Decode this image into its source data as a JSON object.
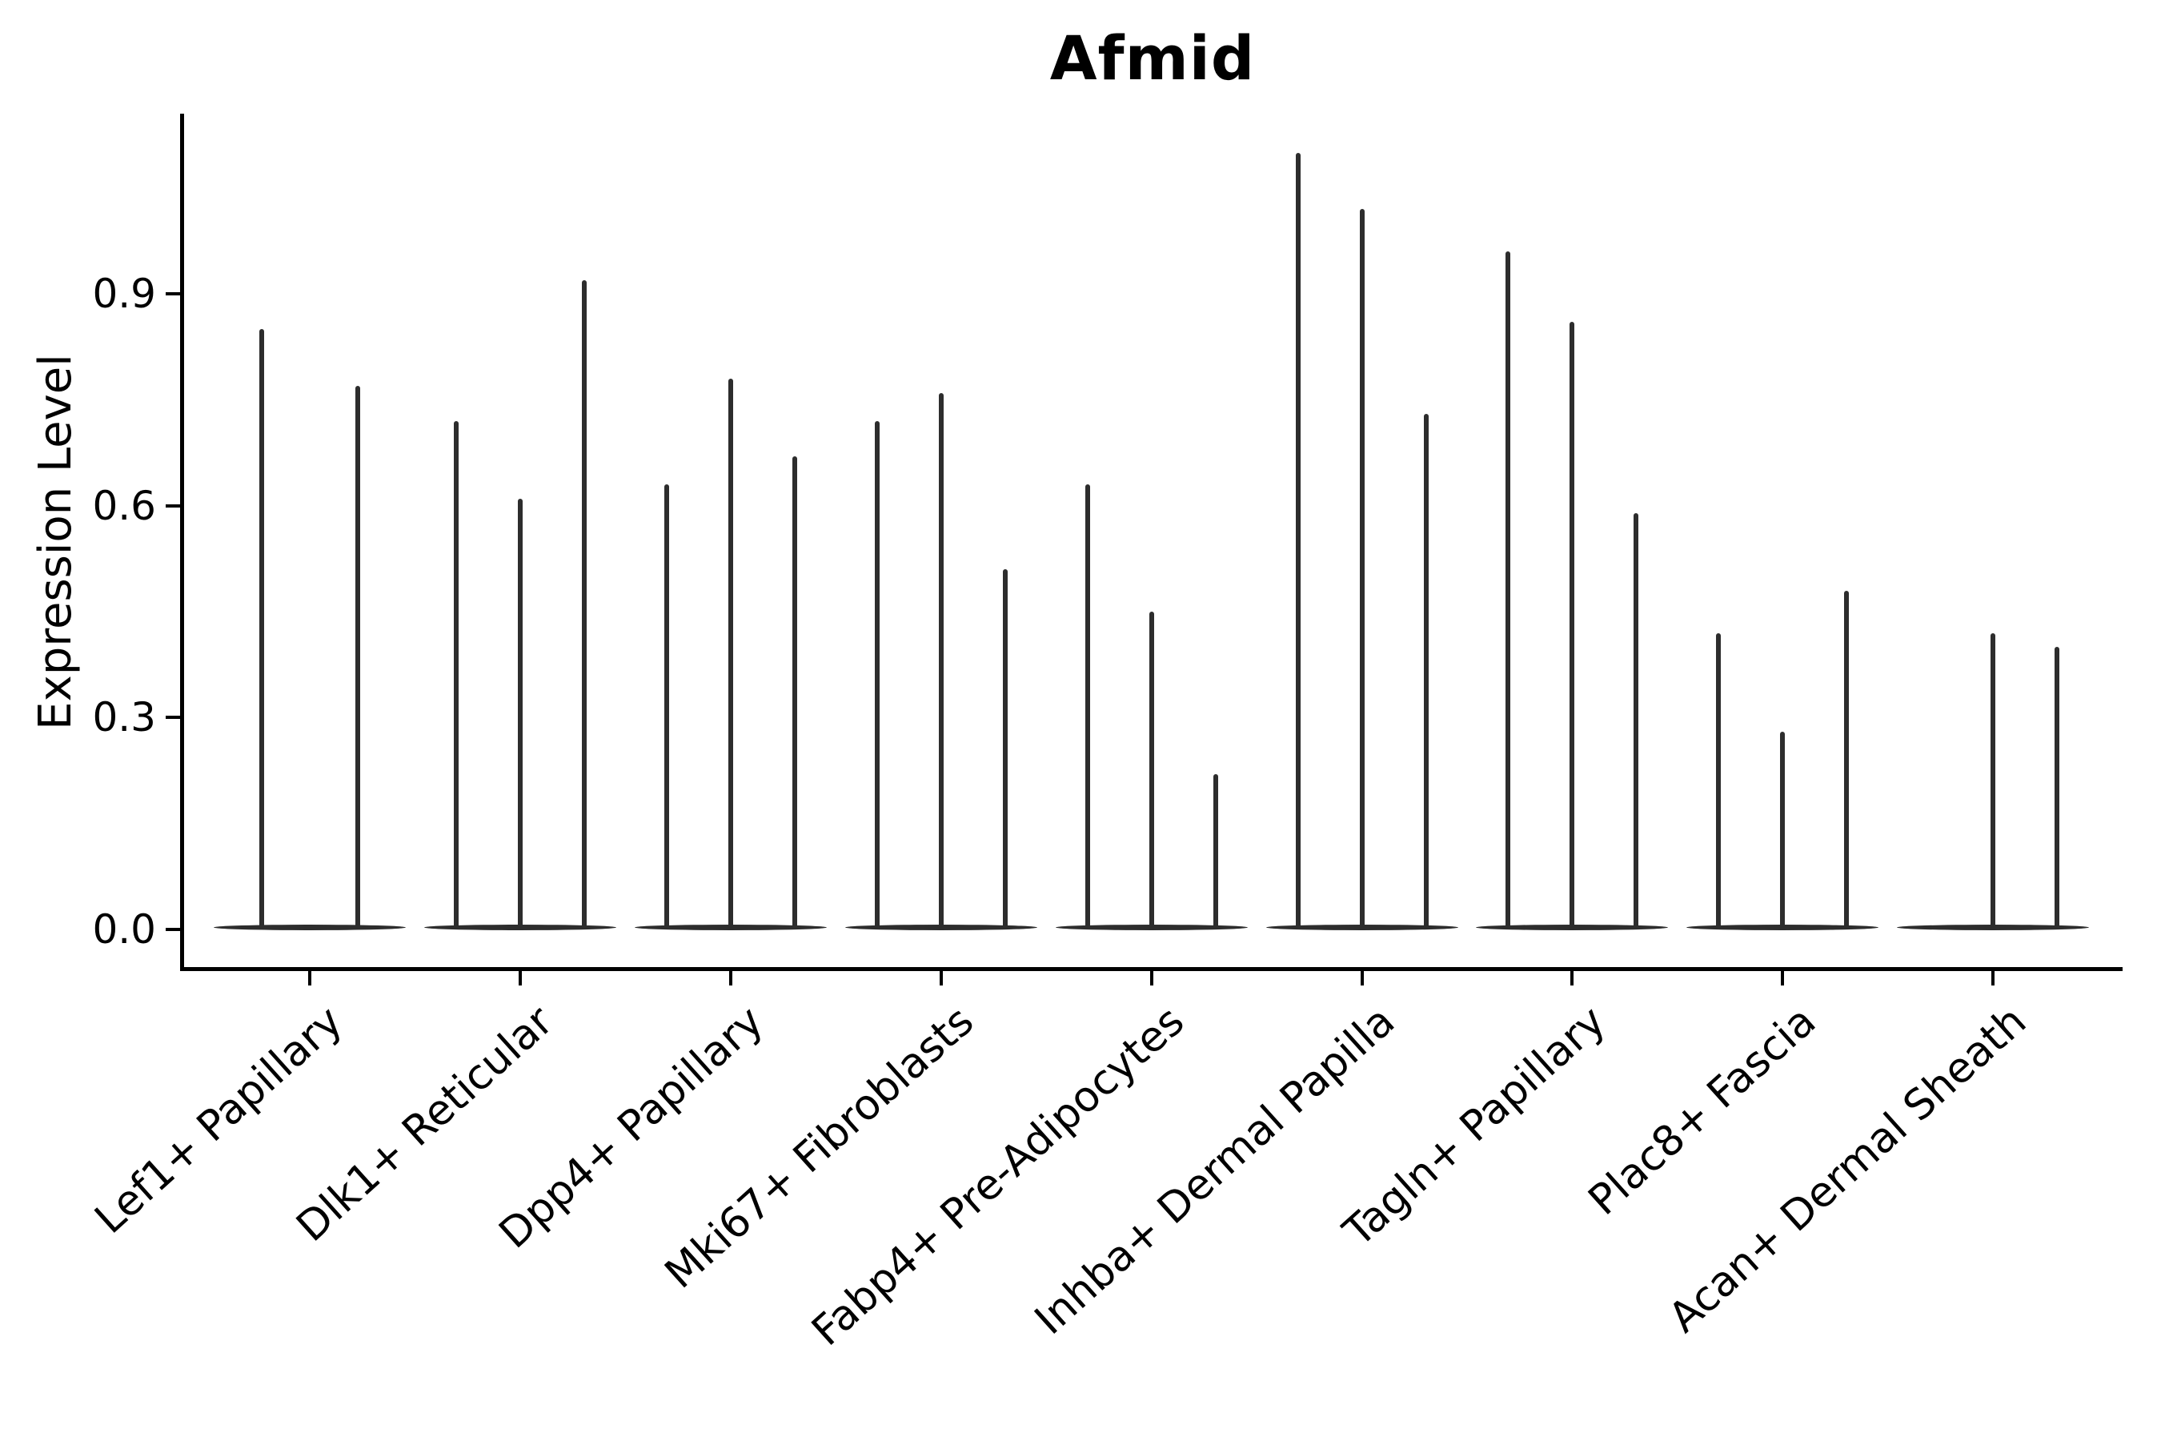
{
  "figure": {
    "background": "#ffffff",
    "ink_color": "#2d2d2d",
    "axis_color": "#000000"
  },
  "chart_data": {
    "type": "violin",
    "title": "Afmid",
    "xlabel": "",
    "ylabel": "Expression Level",
    "ylim": [
      -0.055,
      1.155
    ],
    "yticks": [
      0.0,
      0.3,
      0.6,
      0.9
    ],
    "ytick_labels": [
      "0.0",
      "0.3",
      "0.6",
      "0.9"
    ],
    "grid": false,
    "legend_position": "none",
    "description": "Violin plot of Afmid expression per fibroblast subtype; expression is sparse so each violin collapses to a flat base at 0 with a thin spike up to its maximum expression value. Several categories contain 2-3 side-by-side violins sharing one axis tick.",
    "categories": [
      "Lef1+ Papillary",
      "Dlk1+ Reticular",
      "Dpp4+ Papillary",
      "Mki67+ Fibroblasts",
      "Fabp4+ Pre-Adipocytes",
      "Inhba+ Dermal Papilla",
      "Tagln+ Papillary",
      "Plac8+ Fascia",
      "Acan+ Dermal Sheath"
    ],
    "groups": [
      {
        "category": "Lef1+ Papillary",
        "violin_max_values": [
          0.85,
          0.77
        ]
      },
      {
        "category": "Dlk1+ Reticular",
        "violin_max_values": [
          0.72,
          0.61,
          0.92
        ]
      },
      {
        "category": "Dpp4+ Papillary",
        "violin_max_values": [
          0.63,
          0.78,
          0.67
        ]
      },
      {
        "category": "Mki67+ Fibroblasts",
        "violin_max_values": [
          0.72,
          0.76,
          0.51
        ]
      },
      {
        "category": "Fabp4+ Pre-Adipocytes",
        "violin_max_values": [
          0.63,
          0.45,
          0.22
        ]
      },
      {
        "category": "Inhba+ Dermal Papilla",
        "violin_max_values": [
          1.1,
          1.02,
          0.73
        ]
      },
      {
        "category": "Tagln+ Papillary",
        "violin_max_values": [
          0.96,
          0.86,
          0.59
        ]
      },
      {
        "category": "Plac8+ Fascia",
        "violin_max_values": [
          0.42,
          0.28,
          0.48
        ]
      },
      {
        "category": "Acan+ Dermal Sheath",
        "violin_max_values": [
          0.0,
          0.42,
          0.4
        ]
      }
    ]
  }
}
